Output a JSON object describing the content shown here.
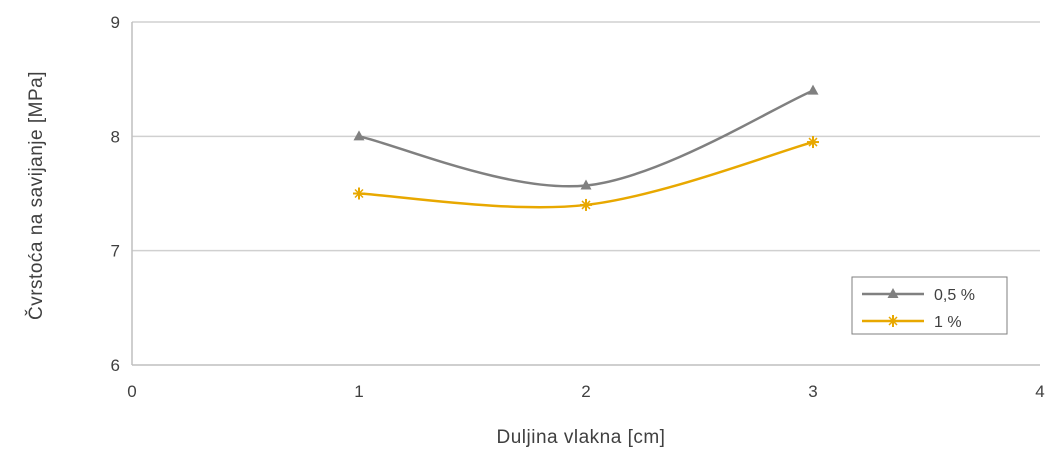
{
  "chart_data": {
    "type": "line",
    "title": "",
    "xlabel": "Duljina vlakna [cm]",
    "ylabel": "Čvrstoća na savijanje [MPa]",
    "xlim": [
      0,
      4
    ],
    "ylim": [
      6,
      9
    ],
    "x_ticks": [
      "0",
      "1",
      "2",
      "3",
      "4"
    ],
    "y_ticks": [
      "6",
      "7",
      "8",
      "9"
    ],
    "grid": "horizontal",
    "legend_position": "bottom-right",
    "x": [
      1,
      2,
      3
    ],
    "series": [
      {
        "name": "0,5 %",
        "values": [
          8.0,
          7.57,
          8.4
        ],
        "color": "#808080",
        "marker": "triangle"
      },
      {
        "name": "1 %",
        "values": [
          7.5,
          7.4,
          7.95
        ],
        "color": "#e8a800",
        "marker": "star"
      }
    ]
  }
}
